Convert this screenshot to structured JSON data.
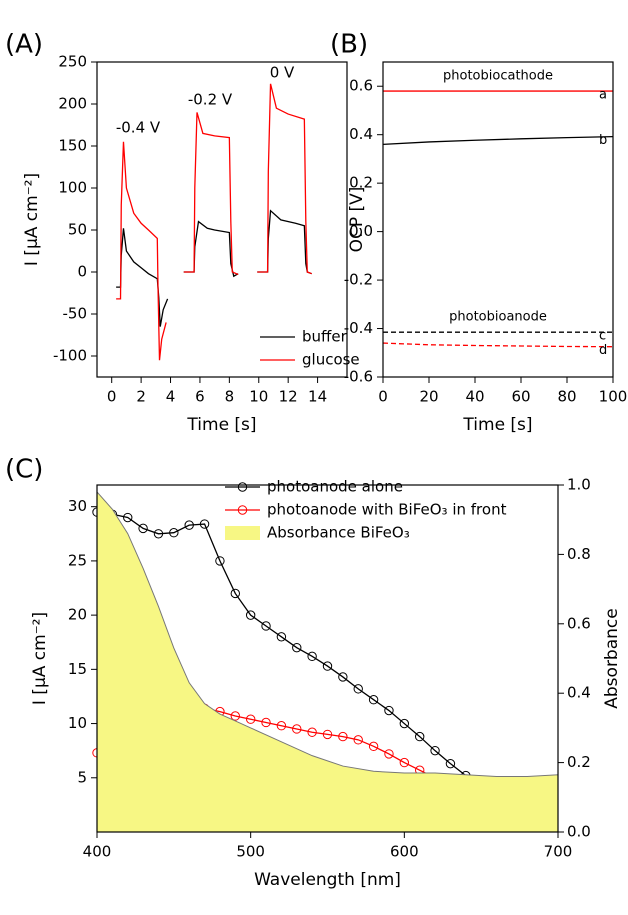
{
  "chart_data": [
    {
      "type": "line",
      "title": "(A)",
      "xlabel": "Time [s]",
      "ylabel": "I [µA cm⁻²]",
      "xlim": [
        -1,
        16
      ],
      "xticks": [
        0,
        2,
        4,
        6,
        8,
        10,
        12,
        14
      ],
      "ylim": [
        -125,
        250
      ],
      "yticks": [
        -100,
        -50,
        0,
        50,
        100,
        150,
        200,
        250
      ],
      "legend": "lower right",
      "annotations": [
        "-0.4 V",
        "-0.2 V",
        "0 V"
      ],
      "series": [
        {
          "name": "buffer",
          "color": "#000000",
          "x": [
            0.3,
            0.6,
            0.65,
            0.8,
            1.0,
            1.5,
            2.0,
            2.5,
            3.1,
            3.2,
            3.3,
            3.5,
            3.8,
            null,
            4.9,
            5.6,
            5.65,
            5.9,
            6.5,
            7.0,
            8.0,
            8.1,
            8.3,
            8.6,
            null,
            9.9,
            10.6,
            10.65,
            10.8,
            11.5,
            12.5,
            13.1,
            13.2,
            13.3,
            13.6
          ],
          "values": [
            -18,
            -18,
            20,
            52,
            25,
            12,
            5,
            -2,
            -8,
            -30,
            -65,
            -45,
            -32,
            null,
            0,
            0,
            30,
            60,
            52,
            50,
            47,
            10,
            -5,
            -2,
            null,
            0,
            0,
            40,
            73,
            62,
            58,
            55,
            10,
            0,
            -2
          ]
        },
        {
          "name": "glucose",
          "color": "#ff0000",
          "x": [
            0.3,
            0.6,
            0.65,
            0.8,
            1.0,
            1.5,
            2.0,
            2.5,
            3.1,
            3.15,
            3.25,
            3.4,
            3.7,
            null,
            4.9,
            5.6,
            5.65,
            5.8,
            6.2,
            7.0,
            8.0,
            8.1,
            8.2,
            8.6,
            null,
            9.9,
            10.6,
            10.65,
            10.8,
            11.2,
            12.0,
            13.1,
            13.2,
            13.3,
            13.6
          ],
          "values": [
            -32,
            -32,
            80,
            155,
            100,
            70,
            58,
            50,
            40,
            -20,
            -105,
            -80,
            -60,
            null,
            0,
            0,
            100,
            190,
            165,
            162,
            160,
            60,
            0,
            -3,
            null,
            0,
            0,
            120,
            224,
            195,
            188,
            182,
            60,
            0,
            -2
          ]
        }
      ]
    },
    {
      "type": "line",
      "title": "(B)",
      "xlabel": "Time [s]",
      "ylabel": "OCP [V]",
      "xlim": [
        0,
        100
      ],
      "xticks": [
        0,
        20,
        40,
        60,
        80,
        100
      ],
      "ylim": [
        -0.6,
        0.7
      ],
      "yticks": [
        -0.6,
        -0.4,
        -0.2,
        {
          "value": 0,
          "label": "0.0"
        },
        0.2,
        0.4,
        0.6
      ],
      "legend": "inline",
      "annotations": [
        "photobiocathode",
        "photobioanode"
      ],
      "series": [
        {
          "name": "a",
          "color": "#ff0000",
          "dash": false,
          "x": [
            0,
            100
          ],
          "values": [
            0.58,
            0.58
          ]
        },
        {
          "name": "b",
          "color": "#000000",
          "dash": false,
          "x": [
            0,
            20,
            40,
            60,
            80,
            100
          ],
          "values": [
            0.36,
            0.37,
            0.377,
            0.383,
            0.388,
            0.392
          ]
        },
        {
          "name": "c",
          "color": "#000000",
          "dash": true,
          "x": [
            0,
            100
          ],
          "values": [
            -0.415,
            -0.415
          ]
        },
        {
          "name": "d",
          "color": "#ff0000",
          "dash": true,
          "x": [
            0,
            20,
            40,
            60,
            80,
            100
          ],
          "values": [
            -0.46,
            -0.467,
            -0.47,
            -0.472,
            -0.474,
            -0.475
          ]
        }
      ]
    },
    {
      "type": "line",
      "title": "(C)",
      "xlabel": "Wavelength [nm]",
      "ylabel": "I [µA cm⁻²]",
      "y2label": "Absorbance",
      "xlim": [
        400,
        700
      ],
      "xticks": [
        400,
        500,
        600,
        700
      ],
      "ylim": [
        0,
        32
      ],
      "yticks": [
        5,
        10,
        15,
        20,
        25,
        30
      ],
      "y2lim": [
        0,
        1
      ],
      "y2ticks": [
        {
          "value": 0,
          "label": "0.0"
        },
        0.2,
        0.4,
        0.6,
        0.8,
        {
          "value": 1,
          "label": "1.0"
        }
      ],
      "legend": "upper center",
      "x": [
        400,
        410,
        420,
        430,
        440,
        450,
        460,
        470,
        480,
        490,
        500,
        510,
        520,
        530,
        540,
        550,
        560,
        570,
        580,
        590,
        600,
        610,
        620,
        630,
        640,
        650,
        660,
        670,
        680,
        690
      ],
      "series": [
        {
          "name": "photoanode alone",
          "color": "#000000",
          "marker": "circle",
          "values": [
            29.5,
            29.3,
            29,
            28,
            27.5,
            27.6,
            28.3,
            28.4,
            25,
            22,
            20,
            19,
            18,
            17,
            16.2,
            15.3,
            14.3,
            13.2,
            12.2,
            11.2,
            10,
            8.8,
            7.5,
            6.3,
            5.2,
            4.3,
            3.7,
            3.3,
            3,
            2.8
          ]
        },
        {
          "name": "photoanode with BiFeO₃ in front",
          "color": "#ff0000",
          "marker": "circle",
          "values": [
            7.3,
            6.5,
            6.6,
            6.9,
            7.4,
            8.2,
            9.8,
            11.4,
            11.1,
            10.7,
            10.4,
            10.1,
            9.8,
            9.5,
            9.2,
            9,
            8.8,
            8.5,
            7.9,
            7.2,
            6.4,
            5.7,
            5,
            4.5,
            4,
            3.5,
            3.1,
            2.6,
            2.3,
            2.1
          ]
        },
        {
          "name": "Absorbance BiFeO₃",
          "color": "#f7f784",
          "fill": true,
          "axis": "y2",
          "x": [
            400,
            410,
            420,
            430,
            440,
            450,
            460,
            470,
            480,
            490,
            500,
            520,
            540,
            560,
            580,
            600,
            620,
            640,
            660,
            680,
            700
          ],
          "values": [
            0.98,
            0.93,
            0.86,
            0.76,
            0.65,
            0.53,
            0.43,
            0.37,
            0.34,
            0.32,
            0.3,
            0.26,
            0.22,
            0.19,
            0.175,
            0.17,
            0.17,
            0.165,
            0.16,
            0.16,
            0.165
          ]
        }
      ]
    }
  ]
}
